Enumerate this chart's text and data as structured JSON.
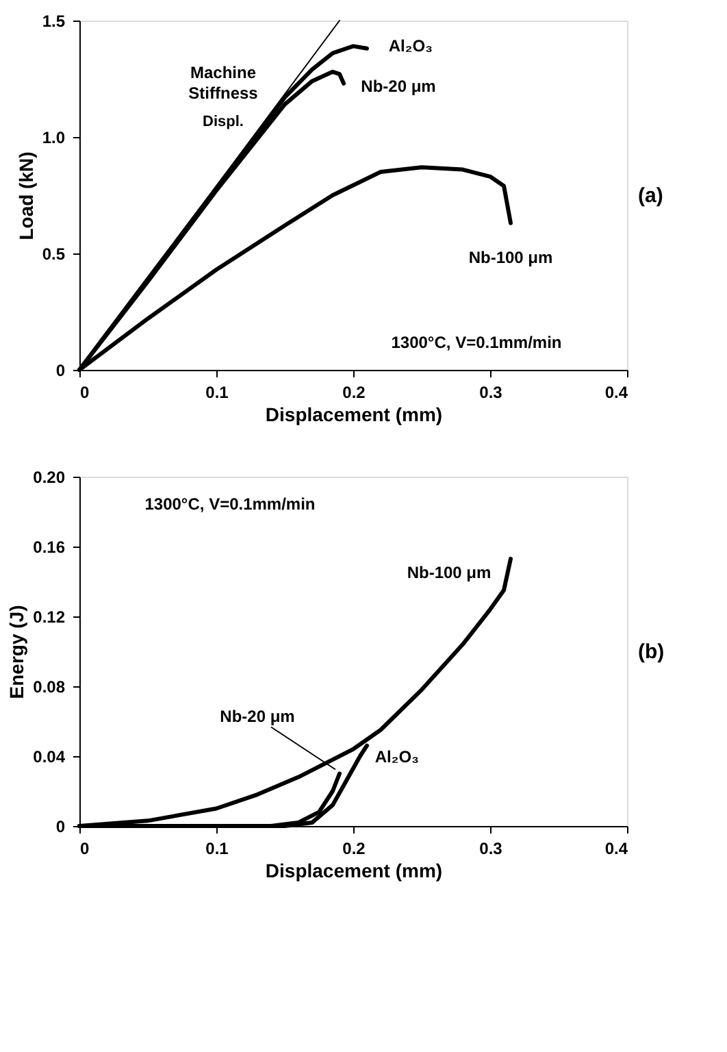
{
  "chart_data": [
    {
      "type": "line",
      "xlabel": "Displacement (mm)",
      "ylabel": "Load (kN)",
      "xlim": [
        0,
        0.4
      ],
      "xticks": [
        0,
        0.1,
        0.2,
        0.3,
        0.4
      ],
      "ylim": [
        0,
        1.5
      ],
      "yticks": [
        0,
        0.5,
        {
          "value": 1,
          "label": "1.0"
        },
        1.5
      ],
      "grid": false,
      "marker": "none",
      "line_style": "solid",
      "series": [
        {
          "name": "Machine Stiffness",
          "color": "#000000",
          "x": [
            0,
            0.19
          ],
          "values": [
            0,
            1.5
          ]
        },
        {
          "name": "Al₂O₃",
          "color": "#000000",
          "x": [
            0,
            0.05,
            0.1,
            0.15,
            0.17,
            0.185,
            0.2,
            0.21
          ],
          "values": [
            0,
            0.39,
            0.78,
            1.17,
            1.29,
            1.36,
            1.39,
            1.38
          ]
        },
        {
          "name": "Nb-20  μm",
          "color": "#000000",
          "x": [
            0,
            0.05,
            0.1,
            0.15,
            0.17,
            0.185,
            0.19,
            0.193
          ],
          "values": [
            0,
            0.38,
            0.77,
            1.14,
            1.24,
            1.28,
            1.27,
            1.23
          ]
        },
        {
          "name": "Nb-100  μm",
          "color": "#000000",
          "x": [
            0,
            0.05,
            0.1,
            0.15,
            0.185,
            0.22,
            0.25,
            0.28,
            0.3,
            0.31,
            0.315
          ],
          "values": [
            0,
            0.22,
            0.43,
            0.62,
            0.75,
            0.85,
            0.87,
            0.86,
            0.83,
            0.79,
            0.63
          ]
        }
      ],
      "annotations": [
        "Displ.",
        "1300°C, V=0.1mm/min",
        "(a)"
      ]
    },
    {
      "type": "line",
      "xlabel": "Displacement (mm)",
      "ylabel": "Energy (J)",
      "xlim": [
        0,
        0.4
      ],
      "xticks": [
        0,
        0.1,
        0.2,
        0.3,
        0.4
      ],
      "ylim": [
        0,
        0.2
      ],
      "yticks": [
        0,
        0.04,
        0.08,
        0.12,
        0.16,
        {
          "value": 0.2,
          "label": "0.20"
        }
      ],
      "grid": false,
      "marker": "none",
      "line_style": "solid",
      "series": [
        {
          "name": "Nb-100  μm",
          "color": "#000000",
          "x": [
            0,
            0.05,
            0.1,
            0.13,
            0.16,
            0.2,
            0.22,
            0.25,
            0.28,
            0.3,
            0.31,
            0.315
          ],
          "values": [
            0,
            0.003,
            0.01,
            0.018,
            0.028,
            0.044,
            0.055,
            0.078,
            0.104,
            0.124,
            0.135,
            0.153
          ]
        },
        {
          "name": "Al₂O₃",
          "color": "#000000",
          "x": [
            0,
            0.15,
            0.17,
            0.185,
            0.195,
            0.205,
            0.21
          ],
          "values": [
            0,
            0,
            0.002,
            0.012,
            0.026,
            0.04,
            0.046
          ]
        },
        {
          "name": "Nb-20  μm",
          "color": "#000000",
          "x": [
            0,
            0.14,
            0.16,
            0.175,
            0.185,
            0.19
          ],
          "values": [
            0,
            0,
            0.002,
            0.008,
            0.02,
            0.03
          ]
        }
      ],
      "annotations": [
        "1300°C, V=0.1mm/min",
        "(b)"
      ]
    }
  ]
}
